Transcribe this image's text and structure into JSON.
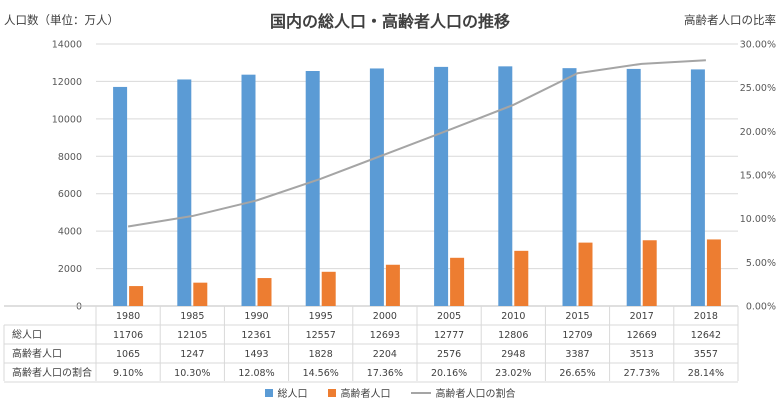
{
  "chart_data": {
    "type": "bar",
    "title": "国内の総人口・高齢者人口の推移",
    "ylabel": "人口数（単位：万人）",
    "y2label": "高齢者人口の比率",
    "ylim": [
      0,
      14000
    ],
    "y2lim": [
      0,
      0.3
    ],
    "yticks": [
      "0",
      "2000",
      "4000",
      "6000",
      "8000",
      "10000",
      "12000",
      "14000"
    ],
    "y2ticks": [
      "0.00%",
      "5.00%",
      "10.00%",
      "15.00%",
      "20.00%",
      "25.00%",
      "30.00%"
    ],
    "grid": true,
    "legend_position": "bottom",
    "categories": [
      "1980",
      "1985",
      "1990",
      "1995",
      "2000",
      "2005",
      "2010",
      "2015",
      "2017",
      "2018"
    ],
    "series": [
      {
        "name": "総人口",
        "type": "bar",
        "axis": "left",
        "color": "#5B9BD5",
        "values": [
          11706,
          12105,
          12361,
          12557,
          12693,
          12777,
          12806,
          12709,
          12669,
          12642
        ],
        "labels": [
          "11706",
          "12105",
          "12361",
          "12557",
          "12693",
          "12777",
          "12806",
          "12709",
          "12669",
          "12642"
        ]
      },
      {
        "name": "高齢者人口",
        "type": "bar",
        "axis": "left",
        "color": "#ED7D31",
        "values": [
          1065,
          1247,
          1493,
          1828,
          2204,
          2576,
          2948,
          3387,
          3513,
          3557
        ],
        "labels": [
          "1065",
          "1247",
          "1493",
          "1828",
          "2204",
          "2576",
          "2948",
          "3387",
          "3513",
          "3557"
        ]
      },
      {
        "name": "高齢者人口の割合",
        "type": "line",
        "axis": "right",
        "color": "#A5A5A5",
        "values": [
          0.091,
          0.103,
          0.1208,
          0.1456,
          0.1736,
          0.2016,
          0.2302,
          0.2665,
          0.2773,
          0.2814
        ],
        "labels": [
          "9.10%",
          "10.30%",
          "12.08%",
          "14.56%",
          "17.36%",
          "20.16%",
          "23.02%",
          "26.65%",
          "27.73%",
          "28.14%"
        ]
      }
    ]
  }
}
